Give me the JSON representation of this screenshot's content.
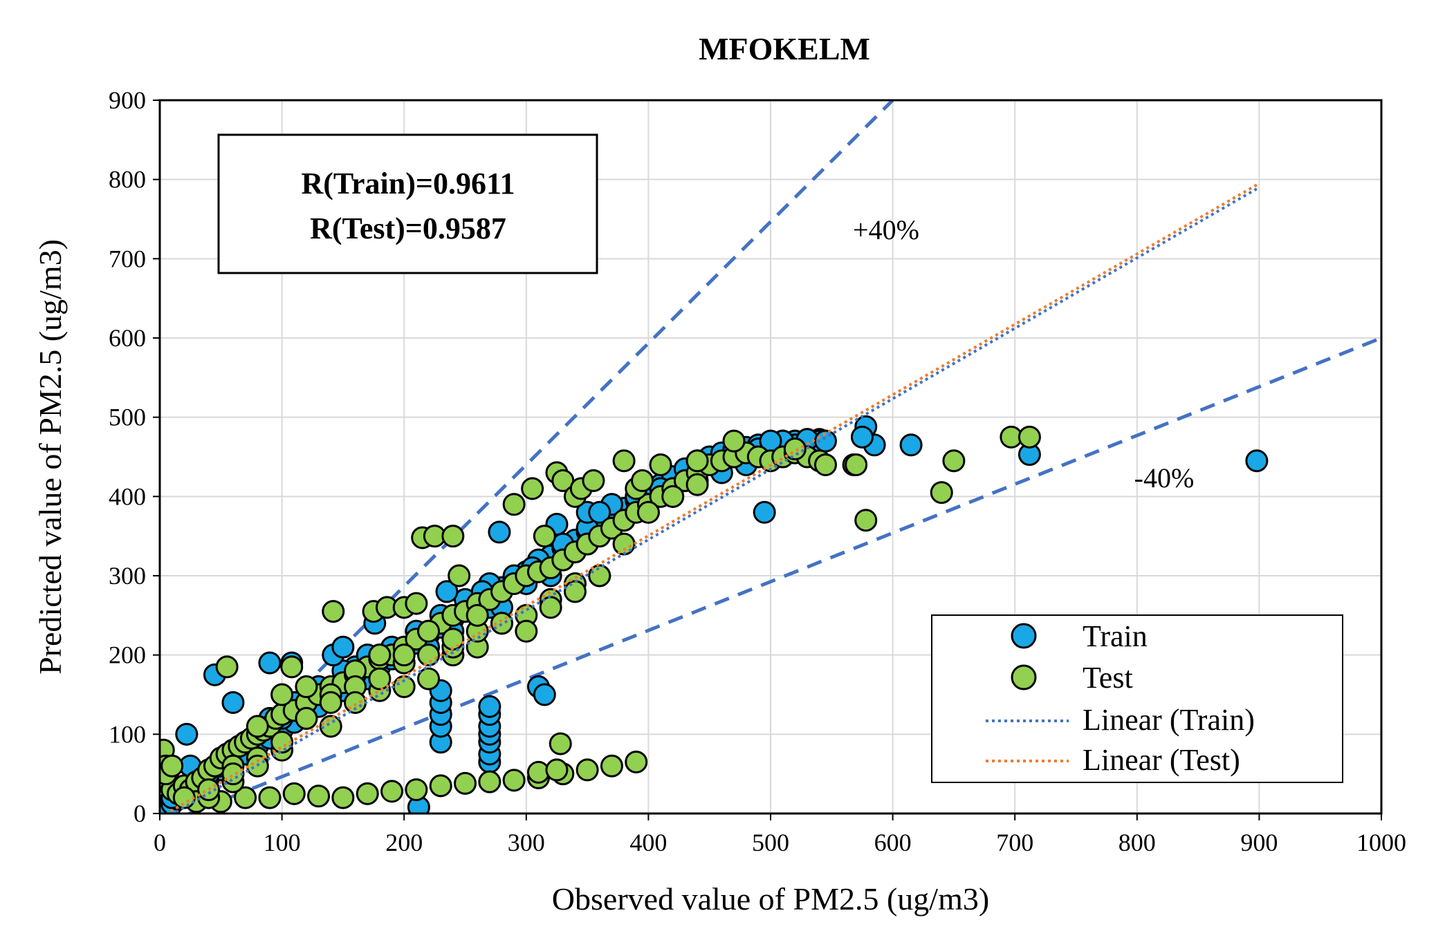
{
  "chart_data": {
    "type": "scatter",
    "title": "MFOKELM",
    "xlabel": "Observed value of PM2.5 (ug/m3)",
    "ylabel": "Predicted value of PM2.5 (ug/m3)",
    "xlim": [
      0,
      1000
    ],
    "ylim": [
      0,
      900
    ],
    "xticks": [
      0,
      100,
      200,
      300,
      400,
      500,
      600,
      700,
      800,
      900,
      1000
    ],
    "yticks": [
      0,
      100,
      200,
      300,
      400,
      500,
      600,
      700,
      800,
      900
    ],
    "grid": true,
    "legend_position": "bottom-right",
    "stats_box": [
      "R(Train)=0.9611",
      "R(Test)=0.9587"
    ],
    "bands": [
      {
        "label": "+40%",
        "x": [
          0,
          600
        ],
        "y": [
          -20,
          900
        ],
        "color": "#4472c4",
        "label_at": [
          600,
          745
        ]
      },
      {
        "label": "-40%",
        "x": [
          0,
          1000
        ],
        "y": [
          -15,
          600
        ],
        "color": "#4472c4",
        "label_at": [
          830,
          420
        ]
      }
    ],
    "series": [
      {
        "name": "Train",
        "color": "#1aa7e6",
        "x": [
          5,
          10,
          15,
          20,
          25,
          30,
          40,
          50,
          60,
          70,
          80,
          90,
          100,
          110,
          120,
          130,
          140,
          150,
          160,
          170,
          180,
          190,
          200,
          210,
          220,
          230,
          240,
          250,
          260,
          270,
          280,
          290,
          300,
          310,
          320,
          330,
          340,
          350,
          360,
          370,
          380,
          390,
          400,
          410,
          420,
          430,
          440,
          450,
          460,
          470,
          480,
          490,
          500,
          510,
          520,
          530,
          540,
          25,
          40,
          50,
          60,
          80,
          90,
          100,
          110,
          120,
          130,
          140,
          150,
          160,
          170,
          180,
          200,
          220,
          240,
          260,
          270,
          280,
          300,
          320,
          330,
          340,
          350,
          360,
          380,
          400,
          420,
          440,
          460,
          480,
          500,
          520,
          540,
          10,
          20,
          30,
          50,
          70,
          90,
          110,
          130,
          150,
          170,
          190,
          210,
          230,
          250,
          270,
          290,
          310,
          330,
          350,
          370,
          390,
          410,
          430,
          450,
          470,
          490,
          510,
          230,
          230,
          230,
          230,
          230,
          270,
          270,
          270,
          270,
          270,
          270,
          270,
          22,
          45,
          60,
          90,
          108,
          142,
          150,
          176,
          235,
          264,
          278,
          305,
          325,
          350,
          360,
          310,
          315,
          212,
          578,
          585,
          615,
          712,
          898,
          495,
          500,
          530,
          545,
          575
        ],
        "y": [
          5,
          12,
          18,
          22,
          30,
          35,
          45,
          55,
          65,
          75,
          85,
          95,
          105,
          115,
          125,
          135,
          145,
          155,
          165,
          175,
          185,
          195,
          205,
          215,
          225,
          235,
          245,
          255,
          265,
          275,
          285,
          295,
          305,
          315,
          325,
          335,
          345,
          355,
          365,
          375,
          385,
          395,
          405,
          415,
          425,
          435,
          445,
          450,
          455,
          460,
          462,
          465,
          468,
          470,
          470,
          472,
          472,
          60,
          50,
          70,
          80,
          100,
          110,
          120,
          135,
          140,
          160,
          150,
          170,
          185,
          170,
          200,
          190,
          210,
          230,
          250,
          260,
          260,
          290,
          300,
          320,
          330,
          340,
          350,
          370,
          380,
          400,
          420,
          430,
          440,
          460,
          465,
          470,
          20,
          30,
          40,
          60,
          90,
          120,
          140,
          160,
          180,
          200,
          210,
          230,
          250,
          270,
          290,
          300,
          320,
          340,
          360,
          390,
          400,
          410,
          420,
          440,
          450,
          460,
          470,
          90,
          110,
          125,
          140,
          155,
          65,
          75,
          90,
          100,
          110,
          125,
          135,
          100,
          175,
          140,
          190,
          190,
          200,
          210,
          240,
          280,
          280,
          355,
          310,
          365,
          380,
          380,
          160,
          150,
          8,
          488,
          465,
          465,
          453,
          445,
          380,
          470,
          472,
          470,
          475
        ]
      },
      {
        "name": "Test",
        "color": "#92d050",
        "x": [
          3,
          5,
          8,
          10,
          15,
          20,
          25,
          30,
          35,
          40,
          45,
          50,
          55,
          60,
          65,
          70,
          75,
          80,
          85,
          90,
          95,
          100,
          110,
          120,
          130,
          140,
          150,
          160,
          170,
          180,
          190,
          200,
          210,
          220,
          230,
          240,
          250,
          260,
          270,
          280,
          290,
          300,
          310,
          320,
          330,
          340,
          350,
          360,
          370,
          380,
          390,
          400,
          410,
          420,
          430,
          440,
          450,
          460,
          470,
          480,
          490,
          500,
          510,
          520,
          530,
          540,
          30,
          50,
          70,
          90,
          110,
          130,
          150,
          170,
          190,
          210,
          230,
          250,
          270,
          290,
          310,
          330,
          350,
          370,
          390,
          40,
          60,
          80,
          100,
          120,
          140,
          160,
          180,
          200,
          220,
          240,
          260,
          280,
          300,
          320,
          340,
          360,
          380,
          400,
          420,
          440,
          60,
          80,
          100,
          120,
          140,
          160,
          180,
          200,
          220,
          240,
          260,
          280,
          300,
          320,
          340,
          360,
          20,
          40,
          60,
          80,
          100,
          120,
          140,
          160,
          180,
          200,
          220,
          240,
          260,
          5,
          10,
          55,
          108,
          142,
          175,
          186,
          200,
          210,
          215,
          225,
          240,
          245,
          290,
          305,
          315,
          325,
          330,
          340,
          345,
          355,
          380,
          390,
          395,
          410,
          440,
          470,
          520,
          545,
          568,
          570,
          578,
          640,
          650,
          697,
          712,
          310,
          325,
          328
        ],
        "y": [
          80,
          60,
          40,
          30,
          25,
          35,
          30,
          40,
          45,
          55,
          60,
          70,
          75,
          80,
          85,
          90,
          95,
          100,
          105,
          110,
          120,
          125,
          130,
          140,
          150,
          160,
          165,
          175,
          185,
          195,
          200,
          210,
          220,
          230,
          240,
          250,
          255,
          265,
          270,
          280,
          290,
          300,
          305,
          310,
          320,
          330,
          340,
          350,
          360,
          370,
          380,
          390,
          400,
          410,
          420,
          430,
          440,
          445,
          450,
          455,
          450,
          445,
          450,
          455,
          450,
          445,
          15,
          15,
          20,
          20,
          25,
          22,
          20,
          25,
          28,
          30,
          35,
          38,
          40,
          42,
          45,
          50,
          55,
          60,
          65,
          20,
          60,
          110,
          150,
          160,
          150,
          180,
          200,
          190,
          230,
          200,
          210,
          240,
          250,
          270,
          290,
          300,
          340,
          380,
          400,
          415,
          40,
          70,
          80,
          120,
          140,
          160,
          155,
          200,
          170,
          210,
          230,
          240,
          230,
          260,
          280,
          300,
          20,
          30,
          50,
          60,
          90,
          120,
          110,
          140,
          170,
          160,
          200,
          220,
          250,
          50,
          60,
          185,
          185,
          255,
          255,
          260,
          260,
          265,
          348,
          350,
          350,
          300,
          390,
          410,
          350,
          430,
          420,
          400,
          410,
          420,
          445,
          410,
          420,
          440,
          445,
          470,
          460,
          440,
          440,
          440,
          370,
          405,
          445,
          475,
          475,
          52,
          55,
          88
        ]
      }
    ],
    "trendlines": [
      {
        "name": "Linear (Train)",
        "x": [
          0,
          900
        ],
        "y": [
          -10,
          790
        ],
        "color": "#4472c4"
      },
      {
        "name": "Linear (Test)",
        "x": [
          0,
          900
        ],
        "y": [
          -5,
          795
        ],
        "color": "#ed7d31"
      }
    ]
  }
}
